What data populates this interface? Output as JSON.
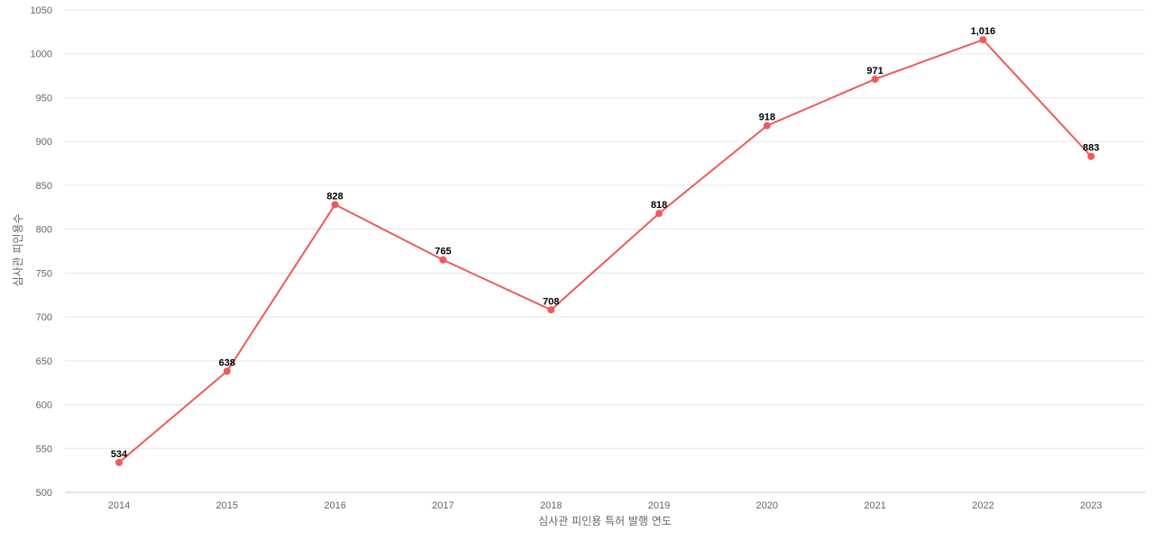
{
  "chart_data": {
    "type": "line",
    "title": "",
    "xlabel": "심사관 피인용 특허 발행 연도",
    "ylabel": "심사관 피인용수",
    "x": [
      "2014",
      "2015",
      "2016",
      "2017",
      "2018",
      "2019",
      "2020",
      "2021",
      "2022",
      "2023"
    ],
    "series": [
      {
        "values": [
          534,
          638,
          828,
          765,
          708,
          818,
          918,
          971,
          1016,
          883
        ],
        "labels": [
          "534",
          "638",
          "828",
          "765",
          "708",
          "818",
          "918",
          "971",
          "1,016",
          "883"
        ],
        "color": "#ee5a5a"
      }
    ],
    "ylim": [
      500,
      1050
    ],
    "yticks": [
      "500",
      "550",
      "600",
      "650",
      "700",
      "750",
      "800",
      "850",
      "900",
      "950",
      "1000",
      "1050"
    ],
    "grid": true,
    "legend": "none"
  }
}
